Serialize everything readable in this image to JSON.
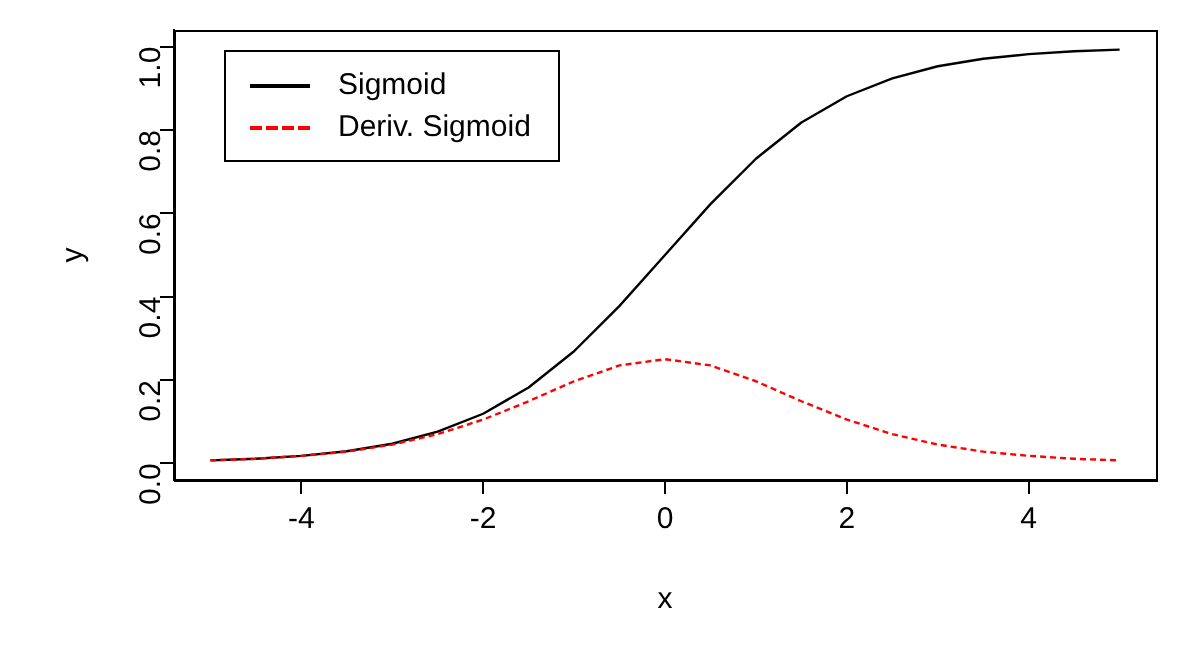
{
  "chart_data": {
    "type": "line",
    "xlabel": "x",
    "ylabel": "y",
    "x": [
      -5,
      -4.5,
      -4,
      -3.5,
      -3,
      -2.5,
      -2,
      -1.5,
      -1,
      -0.5,
      0,
      0.5,
      1,
      1.5,
      2,
      2.5,
      3,
      3.5,
      4,
      4.5,
      5
    ],
    "series": [
      {
        "name": "Sigmoid",
        "color": "#000000",
        "line_style": "solid",
        "values": [
          0.007,
          0.011,
          0.018,
          0.029,
          0.047,
          0.076,
          0.119,
          0.182,
          0.269,
          0.378,
          0.5,
          0.622,
          0.731,
          0.818,
          0.881,
          0.924,
          0.953,
          0.971,
          0.982,
          0.989,
          0.993
        ]
      },
      {
        "name": "Deriv. Sigmoid",
        "color": "#ff0000",
        "line_style": "dashed",
        "values": [
          0.007,
          0.011,
          0.018,
          0.028,
          0.045,
          0.07,
          0.105,
          0.149,
          0.197,
          0.235,
          0.25,
          0.235,
          0.197,
          0.149,
          0.105,
          0.07,
          0.045,
          0.028,
          0.018,
          0.011,
          0.007
        ]
      }
    ],
    "xlim": [
      -5.4,
      5.4
    ],
    "xticks": [
      -4,
      -2,
      0,
      2,
      4
    ],
    "ylim": [
      -0.04,
      1.04
    ],
    "yticks": [
      {
        "value": 0,
        "label": "0.0"
      },
      {
        "value": 0.2,
        "label": "0.2"
      },
      {
        "value": 0.4,
        "label": "0.4"
      },
      {
        "value": 0.6,
        "label": "0.6"
      },
      {
        "value": 0.8,
        "label": "0.8"
      },
      {
        "value": 1,
        "label": "1.0"
      }
    ],
    "grid": false,
    "legend": "top left",
    "marker": "none"
  }
}
